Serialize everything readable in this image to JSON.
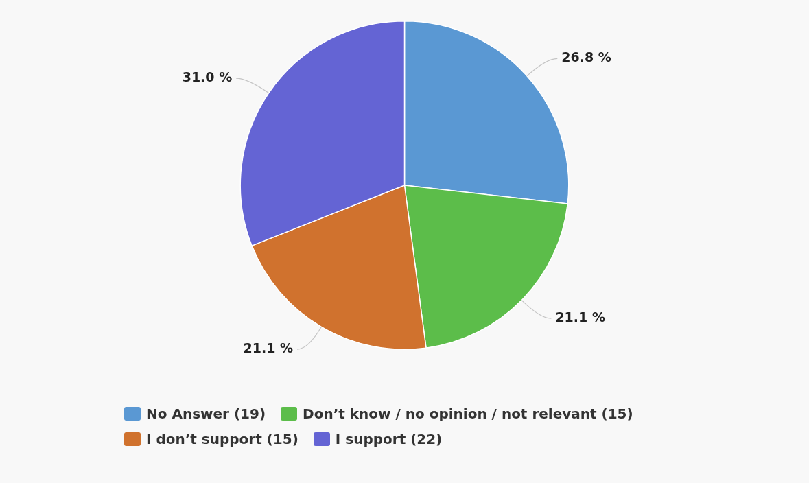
{
  "chart_data": {
    "type": "pie",
    "categories": [
      "No Answer (19)",
      "Don’t know / no opinion / not relevant (15)",
      "I don’t support (15)",
      "I support (22)"
    ],
    "values": [
      26.8,
      21.1,
      21.1,
      31.0
    ],
    "colors": [
      "#5a98d3",
      "#5cbd4a",
      "#d0722e",
      "#6464d4"
    ],
    "value_labels": [
      "26.8 %",
      "21.1 %",
      "21.1 %",
      "31.0 %"
    ],
    "legend": "bottom"
  }
}
